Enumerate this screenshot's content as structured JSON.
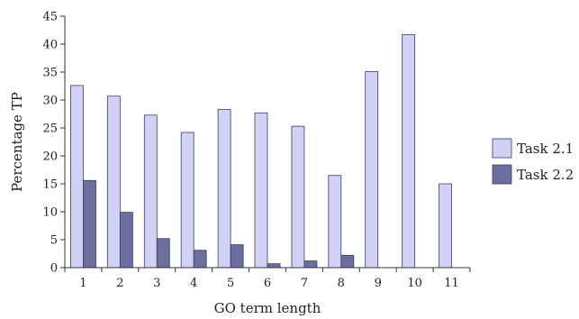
{
  "chart_data": {
    "type": "bar",
    "title": "",
    "xlabel": "GO term length",
    "ylabel": "Percentage TP",
    "ylim": [
      0,
      45
    ],
    "yticks": [
      "0",
      "5",
      "10",
      "15",
      "20",
      "25",
      "30",
      "35",
      "40",
      "45"
    ],
    "categories": [
      "1",
      "2",
      "3",
      "4",
      "5",
      "6",
      "7",
      "8",
      "9",
      "10",
      "11"
    ],
    "series": [
      {
        "name": "Task 2.1",
        "color": "#d0d1f5",
        "values": [
          32.6,
          30.7,
          27.3,
          24.2,
          28.3,
          27.7,
          25.3,
          16.5,
          35.1,
          41.7,
          15.0
        ]
      },
      {
        "name": "Task 2.2",
        "color": "#6b6e9e",
        "values": [
          15.6,
          9.9,
          5.2,
          3.1,
          4.1,
          0.7,
          1.2,
          2.2,
          0,
          0,
          0
        ]
      }
    ],
    "grid": false,
    "legend_position": "right"
  }
}
